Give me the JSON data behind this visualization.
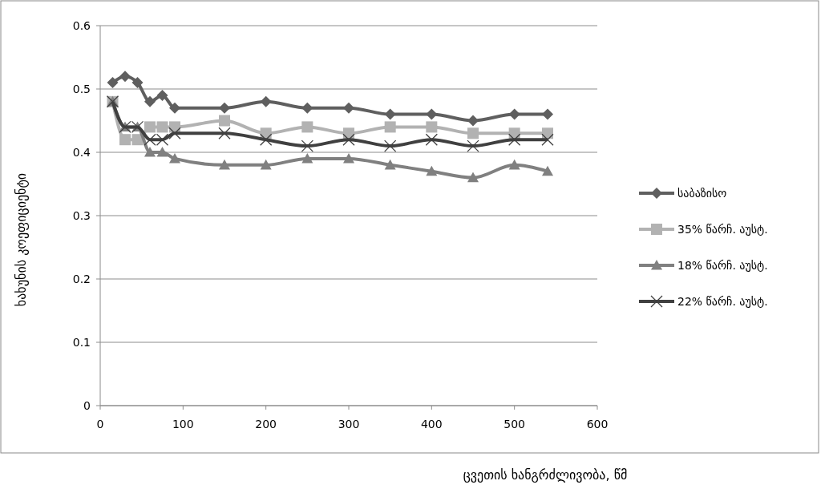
{
  "chart_data": {
    "type": "line",
    "xlabel": "ცვეთის ხანგრძლივობა, წმ",
    "ylabel": "ხახუნის კოეფიციენტი",
    "x": [
      15,
      30,
      45,
      60,
      75,
      90,
      150,
      200,
      250,
      300,
      350,
      400,
      450,
      500,
      540
    ],
    "xlim": [
      0,
      600
    ],
    "xticks": [
      0,
      100,
      200,
      300,
      400,
      500,
      600
    ],
    "ylim": [
      0,
      0.6
    ],
    "yticks": [
      0,
      0.1,
      0.2,
      0.3,
      0.4,
      0.5,
      0.6
    ],
    "grid": "y",
    "legend": "right",
    "series": [
      {
        "name": "საბაზისო",
        "color": "#5f5f5f",
        "marker": "diamond",
        "values": [
          0.51,
          0.52,
          0.51,
          0.48,
          0.49,
          0.47,
          0.47,
          0.48,
          0.47,
          0.47,
          0.46,
          0.46,
          0.45,
          0.46,
          0.46
        ]
      },
      {
        "name": "35% წარჩ. აუსტ.",
        "color": "#b2b2b2",
        "marker": "square",
        "values": [
          0.48,
          0.42,
          0.42,
          0.44,
          0.44,
          0.44,
          0.45,
          0.43,
          0.44,
          0.43,
          0.44,
          0.44,
          0.43,
          0.43,
          0.43
        ]
      },
      {
        "name": "18% წარჩ. აუსტ.",
        "color": "#808080",
        "marker": "triangle",
        "values": [
          0.48,
          0.44,
          0.44,
          0.4,
          0.4,
          0.39,
          0.38,
          0.38,
          0.39,
          0.39,
          0.38,
          0.37,
          0.36,
          0.38,
          0.37
        ]
      },
      {
        "name": "22% წარჩ. აუსტ.",
        "color": "#404040",
        "marker": "cross",
        "values": [
          0.48,
          0.44,
          0.44,
          0.42,
          0.42,
          0.43,
          0.43,
          0.42,
          0.41,
          0.42,
          0.41,
          0.42,
          0.41,
          0.42,
          0.42
        ]
      }
    ]
  }
}
